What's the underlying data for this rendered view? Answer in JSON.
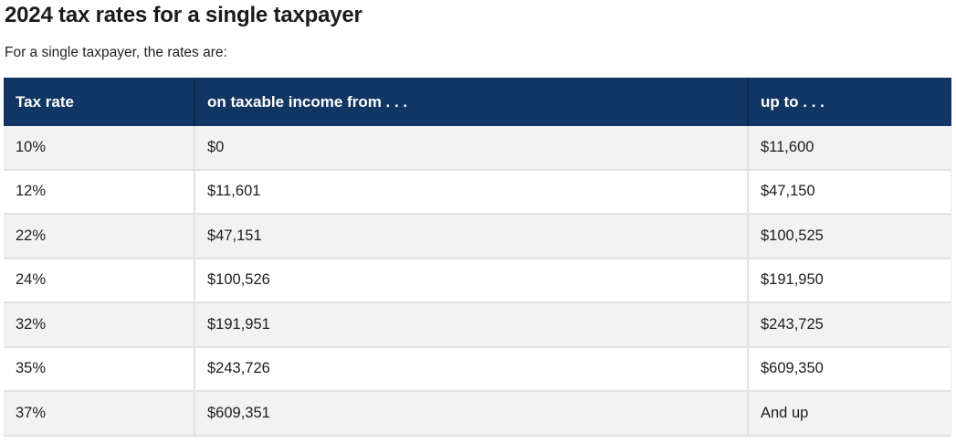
{
  "page": {
    "title": "2024 tax rates for a single taxpayer",
    "subtitle": "For a single taxpayer, the rates are:"
  },
  "table": {
    "columns": [
      {
        "label": "Tax rate"
      },
      {
        "label": "on taxable income from . . ."
      },
      {
        "label": "up to . . ."
      }
    ],
    "rows": [
      {
        "rate": "10%",
        "from": "$0",
        "up_to": "$11,600"
      },
      {
        "rate": "12%",
        "from": "$11,601",
        "up_to": "$47,150"
      },
      {
        "rate": "22%",
        "from": "$47,151",
        "up_to": "$100,525"
      },
      {
        "rate": "24%",
        "from": "$100,526",
        "up_to": "$191,950"
      },
      {
        "rate": "32%",
        "from": "$191,951",
        "up_to": "$243,725"
      },
      {
        "rate": "35%",
        "from": "$243,726",
        "up_to": "$609,350"
      },
      {
        "rate": "37%",
        "from": "$609,351",
        "up_to": "And up"
      }
    ]
  },
  "colors": {
    "header_bg": "#113663",
    "header_text": "#ffffff",
    "row_alt_bg": "#f2f2f2",
    "row_bg": "#ffffff",
    "border": "#e2e2e2",
    "text": "#1d1d1d"
  }
}
